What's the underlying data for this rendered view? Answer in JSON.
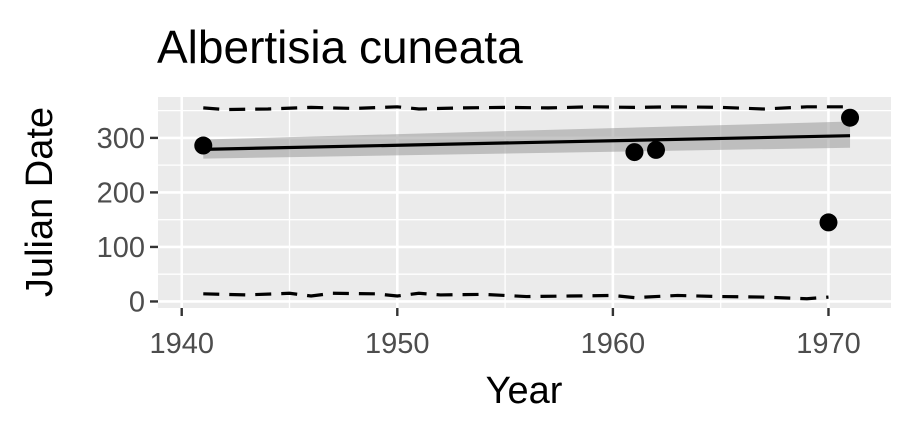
{
  "chart_data": {
    "type": "scatter",
    "title": "Albertisia cuneata",
    "xlabel": "Year",
    "ylabel": "Julian Date",
    "xlim": [
      1938.9,
      1972.9
    ],
    "ylim": [
      -12,
      375
    ],
    "x_ticks": [
      1940,
      1950,
      1960,
      1970
    ],
    "y_ticks": [
      0,
      100,
      200,
      300
    ],
    "x_tick_labels": [
      "1940",
      "1950",
      "1960",
      "1970"
    ],
    "y_tick_labels": [
      "0",
      "100",
      "200",
      "300"
    ],
    "grid": true,
    "legend": "none",
    "points": [
      {
        "x": 1941,
        "y": 286
      },
      {
        "x": 1961,
        "y": 274
      },
      {
        "x": 1962,
        "y": 278
      },
      {
        "x": 1970,
        "y": 145
      },
      {
        "x": 1971,
        "y": 337
      }
    ],
    "trend_line": {
      "x": [
        1941,
        1971
      ],
      "y": [
        279,
        304
      ]
    },
    "confidence_band": {
      "x": [
        1941,
        1971
      ],
      "lower": [
        262,
        282
      ],
      "upper": [
        297,
        330
      ]
    },
    "upper_bound": {
      "x": [
        1941,
        1942,
        1944,
        1946,
        1948,
        1950,
        1951,
        1953,
        1955,
        1957,
        1959,
        1961,
        1963,
        1965,
        1967,
        1969,
        1971
      ],
      "y": [
        355,
        352,
        353,
        356,
        354,
        357,
        353,
        355,
        356,
        355,
        357,
        356,
        357,
        356,
        353,
        357,
        357
      ]
    },
    "lower_bound": {
      "x": [
        1941,
        1943,
        1945,
        1946,
        1947,
        1949,
        1950,
        1951,
        1952,
        1954,
        1956,
        1958,
        1960,
        1961,
        1963,
        1965,
        1967,
        1969,
        1970
      ],
      "y": [
        14,
        12,
        15,
        10,
        15,
        14,
        10,
        15,
        12,
        13,
        9,
        10,
        11,
        7,
        11,
        9,
        8,
        5,
        8
      ]
    },
    "colors": {
      "panel": "#ebebeb",
      "grid_major": "#ffffff",
      "points": "#000000",
      "band": "#999999",
      "line": "#000000"
    }
  }
}
